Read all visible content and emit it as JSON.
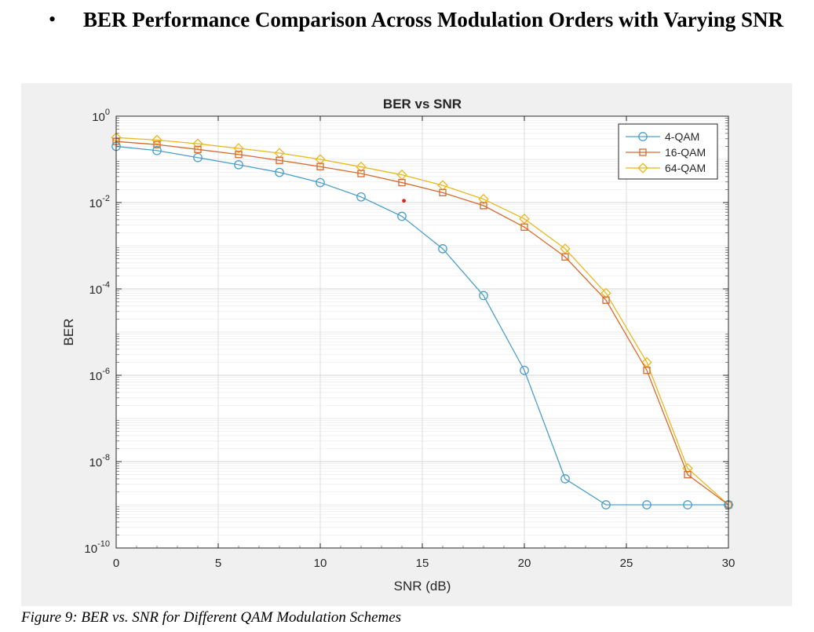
{
  "heading": {
    "bullet": "•",
    "text": "BER Performance Comparison Across Modulation Orders with Varying SNR"
  },
  "caption": "Figure 9: BER vs. SNR for Different QAM Modulation Schemes",
  "chart_data": {
    "type": "line",
    "title": "BER vs SNR",
    "xlabel": "SNR (dB)",
    "ylabel": "BER",
    "xlim": [
      0,
      30
    ],
    "ylim": [
      1e-10,
      1
    ],
    "yscale": "log",
    "grid": true,
    "legend_position": "top-right",
    "x_ticks": [
      0,
      5,
      10,
      15,
      20,
      25,
      30
    ],
    "y_tick_exponents": [
      0,
      -2,
      -4,
      -6,
      -8,
      -10
    ],
    "y_tick_base": "10",
    "x": [
      0,
      2,
      4,
      6,
      8,
      10,
      12,
      14,
      16,
      18,
      20,
      22,
      24,
      26,
      28,
      30
    ],
    "series": [
      {
        "name": "4-QAM",
        "color": "#4d9fc8",
        "marker": "circle",
        "values": [
          0.2,
          0.16,
          0.11,
          0.075,
          0.05,
          0.029,
          0.0135,
          0.0048,
          0.00085,
          7e-05,
          1.3e-06,
          4e-09,
          1e-09,
          1e-09,
          1e-09,
          1e-09
        ]
      },
      {
        "name": "16-QAM",
        "color": "#d9692a",
        "marker": "square",
        "values": [
          0.26,
          0.22,
          0.17,
          0.13,
          0.095,
          0.068,
          0.047,
          0.029,
          0.017,
          0.0085,
          0.0027,
          0.00055,
          5.5e-05,
          1.3e-06,
          5e-09,
          1e-09
        ]
      },
      {
        "name": "64-QAM",
        "color": "#e8b820",
        "marker": "diamond",
        "values": [
          0.32,
          0.28,
          0.23,
          0.18,
          0.14,
          0.1,
          0.067,
          0.044,
          0.025,
          0.012,
          0.0042,
          0.00085,
          8e-05,
          2e-06,
          7e-09,
          1e-09
        ]
      }
    ],
    "annotation_point": {
      "x": 14.1,
      "y": 0.011,
      "color": "#e0201a"
    }
  }
}
